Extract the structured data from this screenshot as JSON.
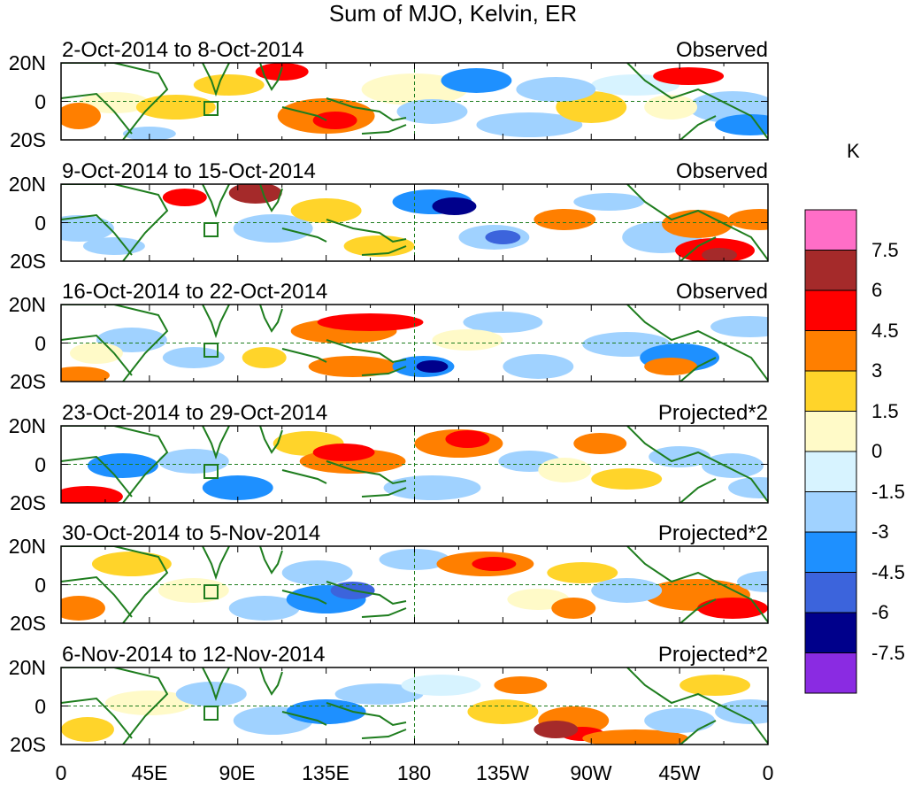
{
  "title": "Sum of MJO, Kelvin, ER",
  "panels": [
    {
      "date_range": "2-Oct-2014 to 8-Oct-2014",
      "status": "Observed"
    },
    {
      "date_range": "9-Oct-2014 to 15-Oct-2014",
      "status": "Observed"
    },
    {
      "date_range": "16-Oct-2014 to 22-Oct-2014",
      "status": "Observed"
    },
    {
      "date_range": "23-Oct-2014 to 29-Oct-2014",
      "status": "Projected*2"
    },
    {
      "date_range": "30-Oct-2014 to 5-Nov-2014",
      "status": "Projected*2"
    },
    {
      "date_range": "6-Nov-2014 to 12-Nov-2014",
      "status": "Projected*2"
    }
  ],
  "lat_labels": [
    "20N",
    "0",
    "20S"
  ],
  "lon_labels": [
    "0",
    "45E",
    "90E",
    "135E",
    "180",
    "135W",
    "90W",
    "45W",
    "0"
  ],
  "colorbar": {
    "unit": "K",
    "labels": [
      "7.5",
      "6",
      "4.5",
      "3",
      "1.5",
      "0",
      "-1.5",
      "-3",
      "-4.5",
      "-6",
      "-7.5"
    ],
    "colors": [
      "#ff6ec7",
      "#a52a2a",
      "#ff0000",
      "#ff7f00",
      "#ffd42a",
      "#fffac8",
      "#d7f3ff",
      "#a0d2ff",
      "#1e90ff",
      "#3c64dc",
      "#00008b",
      "#8a2be2"
    ]
  },
  "colors": {
    "coast": "#1e7d1e",
    "box": "#1e7d1e",
    "gridline": "#1e7d1e"
  }
}
